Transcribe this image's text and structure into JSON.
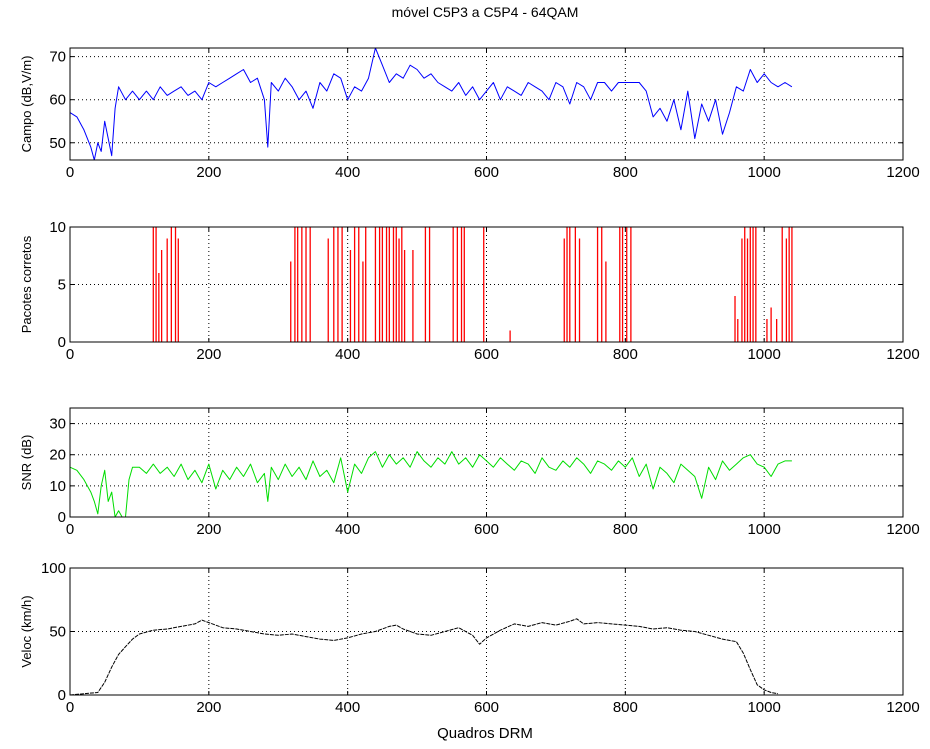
{
  "figure": {
    "title": "móvel C5P3 a C5P4 - 64QAM",
    "xlabel": "Quadros DRM"
  },
  "chart_data": [
    {
      "type": "line",
      "name": "campo",
      "title": "móvel C5P3 a C5P4 - 64QAM",
      "xlabel": "",
      "ylabel": "Campo (dB,V/m)",
      "xlim": [
        0,
        1200
      ],
      "ylim": [
        46,
        72
      ],
      "xticks": [
        0,
        200,
        400,
        600,
        800,
        1000,
        1200
      ],
      "yticks": [
        50,
        60,
        70
      ],
      "grid": true,
      "color": "#0000ff",
      "series": [
        {
          "x": [
            0,
            10,
            20,
            30,
            35,
            40,
            45,
            50,
            55,
            60,
            65,
            70,
            80,
            90,
            100,
            110,
            120,
            130,
            140,
            150,
            160,
            170,
            180,
            190,
            200,
            210,
            220,
            230,
            240,
            250,
            260,
            270,
            280,
            285,
            290,
            300,
            310,
            320,
            330,
            340,
            350,
            360,
            370,
            380,
            390,
            400,
            410,
            420,
            430,
            440,
            450,
            460,
            470,
            480,
            490,
            500,
            510,
            520,
            530,
            540,
            550,
            560,
            570,
            580,
            590,
            600,
            610,
            620,
            630,
            640,
            650,
            660,
            670,
            680,
            690,
            700,
            710,
            720,
            730,
            740,
            750,
            760,
            770,
            780,
            790,
            800,
            810,
            820,
            830,
            840,
            850,
            860,
            870,
            880,
            890,
            900,
            910,
            920,
            930,
            940,
            950,
            960,
            970,
            980,
            990,
            1000,
            1010,
            1020,
            1030,
            1040
          ],
          "y": [
            57,
            56,
            53,
            49,
            46,
            50,
            48,
            55,
            51,
            47,
            58,
            63,
            60,
            62,
            60,
            62,
            60,
            63,
            61,
            62,
            63,
            61,
            62,
            60,
            64,
            63,
            64,
            65,
            66,
            67,
            64,
            65,
            60,
            49,
            64,
            62,
            65,
            63,
            60,
            62,
            58,
            64,
            62,
            66,
            65,
            60,
            63,
            62,
            65,
            72,
            68,
            64,
            66,
            65,
            68,
            67,
            65,
            66,
            64,
            63,
            62,
            64,
            61,
            63,
            60,
            62,
            64,
            60,
            63,
            62,
            61,
            64,
            63,
            62,
            60,
            64,
            63,
            59,
            64,
            63,
            60,
            64,
            64,
            62,
            64,
            64,
            64,
            64,
            62,
            56,
            58,
            55,
            60,
            53,
            62,
            51,
            59,
            55,
            60,
            52,
            57,
            63,
            62,
            67,
            64,
            66,
            64,
            63,
            64,
            63
          ]
        }
      ]
    },
    {
      "type": "line",
      "name": "pacotes",
      "xlabel": "",
      "ylabel": "Pacotes corretos",
      "xlim": [
        0,
        1200
      ],
      "ylim": [
        0,
        10
      ],
      "xticks": [
        0,
        200,
        400,
        600,
        800,
        1000,
        1200
      ],
      "yticks": [
        0,
        5,
        10
      ],
      "grid": true,
      "color": "#ff0000",
      "spikes": [
        [
          120,
          10
        ],
        [
          124,
          10
        ],
        [
          128,
          6
        ],
        [
          132,
          8
        ],
        [
          140,
          9
        ],
        [
          146,
          10
        ],
        [
          152,
          10
        ],
        [
          156,
          9
        ],
        [
          318,
          7
        ],
        [
          324,
          10
        ],
        [
          328,
          10
        ],
        [
          334,
          10
        ],
        [
          340,
          10
        ],
        [
          346,
          10
        ],
        [
          372,
          9
        ],
        [
          380,
          10
        ],
        [
          386,
          10
        ],
        [
          392,
          10
        ],
        [
          404,
          8
        ],
        [
          410,
          10
        ],
        [
          416,
          10
        ],
        [
          422,
          7
        ],
        [
          426,
          10
        ],
        [
          440,
          10
        ],
        [
          446,
          10
        ],
        [
          450,
          10
        ],
        [
          456,
          10
        ],
        [
          460,
          10
        ],
        [
          466,
          10
        ],
        [
          470,
          10
        ],
        [
          474,
          9
        ],
        [
          478,
          10
        ],
        [
          482,
          8
        ],
        [
          494,
          8
        ],
        [
          512,
          10
        ],
        [
          518,
          10
        ],
        [
          552,
          10
        ],
        [
          558,
          10
        ],
        [
          564,
          10
        ],
        [
          568,
          10
        ],
        [
          596,
          10
        ],
        [
          634,
          1
        ],
        [
          712,
          9
        ],
        [
          716,
          10
        ],
        [
          720,
          10
        ],
        [
          728,
          10
        ],
        [
          734,
          9
        ],
        [
          760,
          10
        ],
        [
          766,
          10
        ],
        [
          772,
          7
        ],
        [
          792,
          10
        ],
        [
          796,
          10
        ],
        [
          802,
          10
        ],
        [
          808,
          10
        ],
        [
          958,
          4
        ],
        [
          962,
          2
        ],
        [
          968,
          9
        ],
        [
          972,
          10
        ],
        [
          976,
          9
        ],
        [
          980,
          10
        ],
        [
          984,
          10
        ],
        [
          988,
          10
        ],
        [
          1004,
          2
        ],
        [
          1010,
          3
        ],
        [
          1018,
          2
        ],
        [
          1026,
          10
        ],
        [
          1032,
          9
        ],
        [
          1036,
          10
        ],
        [
          1040,
          10
        ]
      ]
    },
    {
      "type": "line",
      "name": "snr",
      "xlabel": "",
      "ylabel": "SNR (dB)",
      "xlim": [
        0,
        1200
      ],
      "ylim": [
        0,
        35
      ],
      "xticks": [
        0,
        200,
        400,
        600,
        800,
        1000,
        1200
      ],
      "yticks": [
        0,
        10,
        20,
        30
      ],
      "grid": true,
      "color": "#00dd00",
      "series": [
        {
          "x": [
            0,
            10,
            20,
            30,
            35,
            40,
            45,
            50,
            55,
            60,
            65,
            70,
            75,
            80,
            85,
            90,
            100,
            110,
            120,
            130,
            140,
            150,
            160,
            170,
            180,
            190,
            200,
            210,
            220,
            230,
            240,
            250,
            260,
            270,
            280,
            285,
            290,
            300,
            310,
            320,
            330,
            340,
            350,
            360,
            370,
            380,
            390,
            400,
            410,
            420,
            430,
            440,
            450,
            460,
            470,
            480,
            490,
            500,
            510,
            520,
            530,
            540,
            550,
            560,
            570,
            580,
            590,
            600,
            610,
            620,
            630,
            640,
            650,
            660,
            670,
            680,
            690,
            700,
            710,
            720,
            730,
            740,
            750,
            760,
            770,
            780,
            790,
            800,
            810,
            820,
            830,
            840,
            850,
            860,
            870,
            880,
            890,
            900,
            910,
            920,
            930,
            940,
            950,
            960,
            970,
            980,
            990,
            1000,
            1010,
            1020,
            1030,
            1040
          ],
          "y": [
            16,
            15,
            12,
            8,
            5,
            1,
            10,
            15,
            5,
            8,
            0,
            2,
            0,
            0,
            12,
            16,
            16,
            14,
            17,
            14,
            16,
            13,
            17,
            12,
            15,
            11,
            17,
            9,
            15,
            12,
            16,
            13,
            17,
            11,
            14,
            5,
            16,
            12,
            17,
            13,
            16,
            12,
            18,
            13,
            15,
            11,
            19,
            8,
            17,
            14,
            19,
            21,
            16,
            20,
            17,
            19,
            16,
            21,
            18,
            16,
            19,
            17,
            21,
            17,
            19,
            16,
            20,
            18,
            16,
            19,
            17,
            15,
            18,
            17,
            14,
            19,
            16,
            15,
            18,
            16,
            19,
            17,
            14,
            18,
            17,
            15,
            18,
            16,
            19,
            13,
            17,
            9,
            16,
            14,
            11,
            17,
            15,
            13,
            6,
            16,
            12,
            18,
            15,
            17,
            19,
            20,
            17,
            16,
            13,
            17,
            18,
            18
          ]
        }
      ]
    },
    {
      "type": "line",
      "name": "veloc",
      "xlabel": "Quadros DRM",
      "ylabel": "Veloc (km/h)",
      "xlim": [
        0,
        1200
      ],
      "ylim": [
        0,
        100
      ],
      "xticks": [
        0,
        200,
        400,
        600,
        800,
        1000,
        1200
      ],
      "yticks": [
        0,
        50,
        100
      ],
      "grid": true,
      "color": "#000000",
      "series": [
        {
          "x": [
            0,
            20,
            40,
            50,
            60,
            70,
            80,
            90,
            100,
            120,
            140,
            160,
            180,
            190,
            200,
            220,
            240,
            260,
            280,
            300,
            320,
            340,
            360,
            380,
            400,
            420,
            440,
            460,
            470,
            480,
            500,
            520,
            540,
            560,
            580,
            590,
            600,
            620,
            640,
            660,
            680,
            700,
            720,
            730,
            740,
            760,
            780,
            800,
            820,
            840,
            860,
            880,
            900,
            920,
            940,
            960,
            970,
            980,
            990,
            1000,
            1010,
            1020
          ],
          "y": [
            0,
            1,
            2,
            10,
            22,
            32,
            38,
            44,
            48,
            51,
            52,
            54,
            56,
            59,
            57,
            53,
            52,
            50,
            48,
            47,
            48,
            46,
            44,
            43,
            45,
            48,
            50,
            54,
            55,
            52,
            48,
            47,
            50,
            53,
            47,
            40,
            45,
            51,
            56,
            54,
            57,
            55,
            58,
            60,
            56,
            57,
            56,
            55,
            54,
            52,
            53,
            51,
            50,
            47,
            44,
            42,
            33,
            20,
            8,
            4,
            2,
            1
          ]
        }
      ]
    }
  ]
}
